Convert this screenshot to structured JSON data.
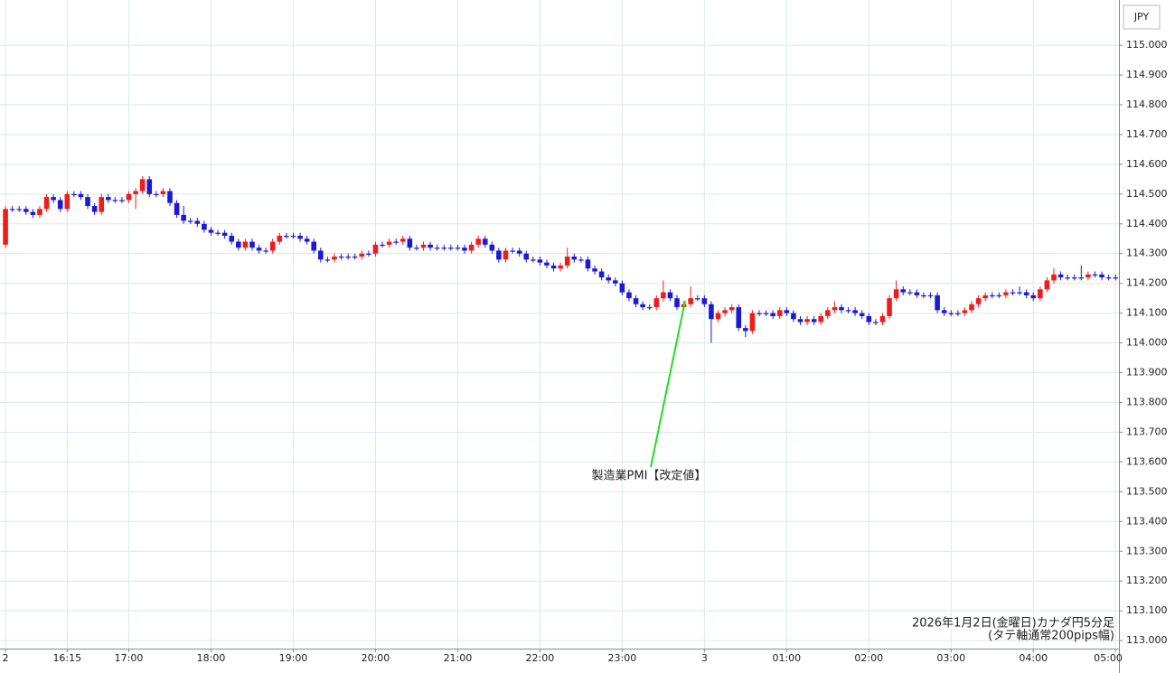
{
  "chart_data": {
    "type": "candlestick",
    "currency_label": "JPY",
    "annotation": "製造業PMI【改定値】",
    "footnote": [
      "2026年1月2日(金曜日)カナダ円5分足",
      "(タテ軸通常200pips幅)"
    ],
    "up_color": "#f01b1b",
    "down_color": "#1a1ad6",
    "grid": true,
    "ylim": [
      112.973,
      115.152
    ],
    "yticks": [
      {
        "value": 113,
        "label": "113.000"
      },
      {
        "value": 113.1,
        "label": "113.100"
      },
      {
        "value": 113.2,
        "label": "113.200"
      },
      {
        "value": 113.3,
        "label": "113.300"
      },
      {
        "value": 113.4,
        "label": "113.400"
      },
      {
        "value": 113.5,
        "label": "113.500"
      },
      {
        "value": 113.6,
        "label": "113.600"
      },
      {
        "value": 113.7,
        "label": "113.700"
      },
      {
        "value": 113.8,
        "label": "113.800"
      },
      {
        "value": 113.9,
        "label": "113.900"
      },
      {
        "value": 114,
        "label": "114.000"
      },
      {
        "value": 114.1,
        "label": "114.100"
      },
      {
        "value": 114.2,
        "label": "114.200"
      },
      {
        "value": 114.3,
        "label": "114.300"
      },
      {
        "value": 114.4,
        "label": "114.400"
      },
      {
        "value": 114.5,
        "label": "114.500"
      },
      {
        "value": 114.6,
        "label": "114.600"
      },
      {
        "value": 114.7,
        "label": "114.700"
      },
      {
        "value": 114.8,
        "label": "114.800"
      },
      {
        "value": 114.9,
        "label": "114.900"
      },
      {
        "value": 115,
        "label": "115.000"
      }
    ],
    "xlim": [
      -0.8,
      162.5
    ],
    "xticks": [
      {
        "value": 0,
        "label": "2"
      },
      {
        "value": 9,
        "label": "16:15"
      },
      {
        "value": 18,
        "label": "17:00"
      },
      {
        "value": 30,
        "label": "18:00"
      },
      {
        "value": 42,
        "label": "19:00"
      },
      {
        "value": 54,
        "label": "20:00"
      },
      {
        "value": 66,
        "label": "21:00"
      },
      {
        "value": 78,
        "label": "22:00"
      },
      {
        "value": 90,
        "label": "23:00"
      },
      {
        "value": 102,
        "label": "3"
      },
      {
        "value": 114,
        "label": "01:00"
      },
      {
        "value": 126,
        "label": "02:00"
      },
      {
        "value": 138,
        "label": "03:00"
      },
      {
        "value": 150,
        "label": "04:00"
      },
      {
        "value": 162,
        "label": "05:00"
      }
    ],
    "ohlc": [
      [
        114.33,
        114.46,
        114.32,
        114.45
      ],
      [
        114.45,
        114.46,
        114.44,
        114.45
      ],
      [
        114.45,
        114.46,
        114.44,
        114.45
      ],
      [
        114.45,
        114.46,
        114.43,
        114.44
      ],
      [
        114.44,
        114.45,
        114.42,
        114.43
      ],
      [
        114.43,
        114.46,
        114.42,
        114.45
      ],
      [
        114.45,
        114.5,
        114.44,
        114.49
      ],
      [
        114.49,
        114.5,
        114.47,
        114.48
      ],
      [
        114.48,
        114.49,
        114.44,
        114.45
      ],
      [
        114.45,
        114.51,
        114.44,
        114.5
      ],
      [
        114.5,
        114.51,
        114.49,
        114.5
      ],
      [
        114.5,
        114.51,
        114.48,
        114.49
      ],
      [
        114.49,
        114.5,
        114.45,
        114.46
      ],
      [
        114.46,
        114.47,
        114.43,
        114.44
      ],
      [
        114.44,
        114.5,
        114.43,
        114.49
      ],
      [
        114.49,
        114.5,
        114.47,
        114.48
      ],
      [
        114.48,
        114.49,
        114.47,
        114.48
      ],
      [
        114.48,
        114.49,
        114.47,
        114.48
      ],
      [
        114.48,
        114.51,
        114.47,
        114.5
      ],
      [
        114.5,
        114.52,
        114.45,
        114.51
      ],
      [
        114.51,
        114.56,
        114.5,
        114.55
      ],
      [
        114.55,
        114.56,
        114.49,
        114.5
      ],
      [
        114.5,
        114.51,
        114.49,
        114.5
      ],
      [
        114.5,
        114.52,
        114.49,
        114.51
      ],
      [
        114.51,
        114.52,
        114.46,
        114.47
      ],
      [
        114.47,
        114.48,
        114.42,
        114.43
      ],
      [
        114.43,
        114.46,
        114.4,
        114.41
      ],
      [
        114.41,
        114.42,
        114.4,
        114.41
      ],
      [
        114.41,
        114.42,
        114.39,
        114.4
      ],
      [
        114.4,
        114.41,
        114.37,
        114.38
      ],
      [
        114.38,
        114.39,
        114.36,
        114.37
      ],
      [
        114.37,
        114.38,
        114.36,
        114.37
      ],
      [
        114.37,
        114.38,
        114.35,
        114.36
      ],
      [
        114.36,
        114.37,
        114.33,
        114.34
      ],
      [
        114.34,
        114.35,
        114.31,
        114.32
      ],
      [
        114.32,
        114.35,
        114.31,
        114.34
      ],
      [
        114.34,
        114.35,
        114.31,
        114.32
      ],
      [
        114.32,
        114.33,
        114.3,
        114.31
      ],
      [
        114.31,
        114.32,
        114.3,
        114.31
      ],
      [
        114.31,
        114.35,
        114.3,
        114.34
      ],
      [
        114.34,
        114.37,
        114.33,
        114.36
      ],
      [
        114.36,
        114.37,
        114.35,
        114.36
      ],
      [
        114.36,
        114.37,
        114.35,
        114.36
      ],
      [
        114.36,
        114.37,
        114.34,
        114.35
      ],
      [
        114.35,
        114.36,
        114.33,
        114.34
      ],
      [
        114.34,
        114.35,
        114.3,
        114.31
      ],
      [
        114.31,
        114.32,
        114.27,
        114.28
      ],
      [
        114.28,
        114.29,
        114.27,
        114.28
      ],
      [
        114.28,
        114.3,
        114.27,
        114.29
      ],
      [
        114.29,
        114.3,
        114.28,
        114.29
      ],
      [
        114.29,
        114.3,
        114.28,
        114.29
      ],
      [
        114.29,
        114.3,
        114.28,
        114.29
      ],
      [
        114.29,
        114.31,
        114.28,
        114.3
      ],
      [
        114.3,
        114.31,
        114.29,
        114.3
      ],
      [
        114.3,
        114.34,
        114.29,
        114.33
      ],
      [
        114.33,
        114.34,
        114.32,
        114.33
      ],
      [
        114.33,
        114.35,
        114.32,
        114.34
      ],
      [
        114.34,
        114.35,
        114.33,
        114.34
      ],
      [
        114.34,
        114.36,
        114.33,
        114.35
      ],
      [
        114.35,
        114.36,
        114.31,
        114.32
      ],
      [
        114.32,
        114.33,
        114.31,
        114.32
      ],
      [
        114.32,
        114.34,
        114.31,
        114.33
      ],
      [
        114.33,
        114.34,
        114.31,
        114.32
      ],
      [
        114.32,
        114.33,
        114.31,
        114.32
      ],
      [
        114.32,
        114.33,
        114.31,
        114.32
      ],
      [
        114.32,
        114.33,
        114.31,
        114.32
      ],
      [
        114.32,
        114.33,
        114.31,
        114.32
      ],
      [
        114.32,
        114.33,
        114.3,
        114.31
      ],
      [
        114.31,
        114.34,
        114.3,
        114.33
      ],
      [
        114.33,
        114.36,
        114.32,
        114.35
      ],
      [
        114.35,
        114.36,
        114.32,
        114.33
      ],
      [
        114.33,
        114.34,
        114.3,
        114.31
      ],
      [
        114.31,
        114.32,
        114.27,
        114.28
      ],
      [
        114.28,
        114.32,
        114.27,
        114.31
      ],
      [
        114.31,
        114.32,
        114.3,
        114.31
      ],
      [
        114.31,
        114.32,
        114.29,
        114.3
      ],
      [
        114.3,
        114.31,
        114.27,
        114.28
      ],
      [
        114.28,
        114.29,
        114.27,
        114.28
      ],
      [
        114.28,
        114.29,
        114.26,
        114.27
      ],
      [
        114.27,
        114.28,
        114.25,
        114.26
      ],
      [
        114.26,
        114.27,
        114.24,
        114.25
      ],
      [
        114.25,
        114.27,
        114.24,
        114.26
      ],
      [
        114.26,
        114.32,
        114.25,
        114.29
      ],
      [
        114.29,
        114.3,
        114.27,
        114.28
      ],
      [
        114.28,
        114.29,
        114.27,
        114.28
      ],
      [
        114.28,
        114.29,
        114.24,
        114.25
      ],
      [
        114.25,
        114.26,
        114.23,
        114.24
      ],
      [
        114.24,
        114.25,
        114.21,
        114.22
      ],
      [
        114.22,
        114.23,
        114.2,
        114.21
      ],
      [
        114.21,
        114.22,
        114.19,
        114.2
      ],
      [
        114.2,
        114.21,
        114.16,
        114.17
      ],
      [
        114.17,
        114.18,
        114.14,
        114.15
      ],
      [
        114.15,
        114.16,
        114.12,
        114.13
      ],
      [
        114.13,
        114.14,
        114.11,
        114.12
      ],
      [
        114.12,
        114.13,
        114.11,
        114.12
      ],
      [
        114.12,
        114.16,
        114.11,
        114.15
      ],
      [
        114.15,
        114.21,
        114.14,
        114.17
      ],
      [
        114.17,
        114.18,
        114.14,
        114.15
      ],
      [
        114.15,
        114.16,
        114.11,
        114.12
      ],
      [
        114.12,
        114.14,
        114.11,
        114.13
      ],
      [
        114.13,
        114.19,
        114.12,
        114.15
      ],
      [
        114.15,
        114.16,
        114.14,
        114.15
      ],
      [
        114.15,
        114.16,
        114.12,
        114.13
      ],
      [
        114.13,
        114.14,
        114.0,
        114.08
      ],
      [
        114.08,
        114.11,
        114.07,
        114.1
      ],
      [
        114.1,
        114.12,
        114.09,
        114.11
      ],
      [
        114.11,
        114.13,
        114.1,
        114.12
      ],
      [
        114.12,
        114.13,
        114.04,
        114.05
      ],
      [
        114.05,
        114.06,
        114.02,
        114.04
      ],
      [
        114.04,
        114.11,
        114.03,
        114.1
      ],
      [
        114.1,
        114.11,
        114.09,
        114.1
      ],
      [
        114.1,
        114.11,
        114.09,
        114.1
      ],
      [
        114.1,
        114.11,
        114.08,
        114.09
      ],
      [
        114.09,
        114.12,
        114.08,
        114.11
      ],
      [
        114.11,
        114.12,
        114.09,
        114.1
      ],
      [
        114.1,
        114.11,
        114.07,
        114.08
      ],
      [
        114.08,
        114.09,
        114.06,
        114.07
      ],
      [
        114.07,
        114.09,
        114.06,
        114.08
      ],
      [
        114.08,
        114.09,
        114.06,
        114.07
      ],
      [
        114.07,
        114.1,
        114.06,
        114.09
      ],
      [
        114.09,
        114.12,
        114.08,
        114.11
      ],
      [
        114.11,
        114.14,
        114.1,
        114.12
      ],
      [
        114.12,
        114.13,
        114.1,
        114.11
      ],
      [
        114.11,
        114.12,
        114.1,
        114.11
      ],
      [
        114.11,
        114.12,
        114.09,
        114.1
      ],
      [
        114.1,
        114.11,
        114.08,
        114.09
      ],
      [
        114.09,
        114.1,
        114.06,
        114.07
      ],
      [
        114.07,
        114.08,
        114.06,
        114.07
      ],
      [
        114.07,
        114.1,
        114.06,
        114.09
      ],
      [
        114.09,
        114.16,
        114.08,
        114.15
      ],
      [
        114.15,
        114.21,
        114.14,
        114.18
      ],
      [
        114.18,
        114.19,
        114.16,
        114.17
      ],
      [
        114.17,
        114.18,
        114.16,
        114.17
      ],
      [
        114.17,
        114.18,
        114.15,
        114.16
      ],
      [
        114.16,
        114.17,
        114.15,
        114.16
      ],
      [
        114.16,
        114.17,
        114.15,
        114.16
      ],
      [
        114.16,
        114.17,
        114.1,
        114.11
      ],
      [
        114.11,
        114.12,
        114.09,
        114.1
      ],
      [
        114.1,
        114.11,
        114.09,
        114.1
      ],
      [
        114.1,
        114.11,
        114.09,
        114.1
      ],
      [
        114.1,
        114.12,
        114.09,
        114.11
      ],
      [
        114.11,
        114.14,
        114.1,
        114.13
      ],
      [
        114.13,
        114.16,
        114.12,
        114.15
      ],
      [
        114.15,
        114.17,
        114.14,
        114.16
      ],
      [
        114.16,
        114.17,
        114.15,
        114.16
      ],
      [
        114.16,
        114.17,
        114.15,
        114.16
      ],
      [
        114.16,
        114.18,
        114.15,
        114.17
      ],
      [
        114.17,
        114.18,
        114.16,
        114.17
      ],
      [
        114.17,
        114.19,
        114.16,
        114.17
      ],
      [
        114.17,
        114.18,
        114.15,
        114.16
      ],
      [
        114.16,
        114.17,
        114.14,
        114.15
      ],
      [
        114.15,
        114.19,
        114.14,
        114.18
      ],
      [
        114.18,
        114.22,
        114.17,
        114.21
      ],
      [
        114.21,
        114.25,
        114.2,
        114.23
      ],
      [
        114.23,
        114.24,
        114.21,
        114.22
      ],
      [
        114.22,
        114.23,
        114.21,
        114.22
      ],
      [
        114.22,
        114.23,
        114.21,
        114.22
      ],
      [
        114.22,
        114.26,
        114.21,
        114.22
      ],
      [
        114.22,
        114.24,
        114.21,
        114.23
      ],
      [
        114.23,
        114.24,
        114.22,
        114.23
      ],
      [
        114.23,
        114.24,
        114.21,
        114.22
      ],
      [
        114.22,
        114.23,
        114.21,
        114.22
      ],
      [
        114.22,
        114.23,
        114.21,
        114.22
      ]
    ]
  }
}
